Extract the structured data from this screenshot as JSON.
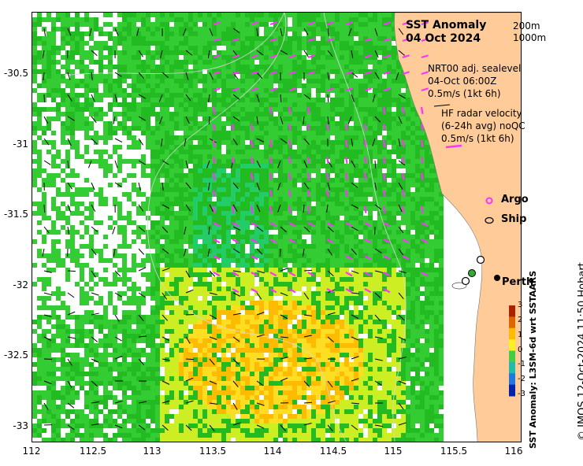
{
  "map": {
    "title_line1": "SST Anomaly",
    "title_line2": "04 Oct 2024",
    "depth_line1": "200m",
    "depth_line2": "1000m",
    "altimetry_line1": "NRT00 adj. sealevel",
    "altimetry_line2": "04-Oct 06:00Z",
    "altimetry_line3": "0.5m/s (1kt 6h)",
    "hf_line1": "HF radar velocity",
    "hf_line2": "(6-24h avg) noQC",
    "hf_line3": "0.5m/s (1kt 6h)",
    "legend_argo": "Argo",
    "legend_ship": "Ship",
    "city": "Perth",
    "colorbar_label": "SST Anomaly: L3SM-6d wrt SSTAARS",
    "colorbar_ticks": [
      "3",
      "2",
      "1",
      "0",
      "-1",
      "-2",
      "-3"
    ],
    "credit": "© IMOS 12-Oct-2024 11:50 Hobart",
    "lon_ticks": [
      "112",
      "112.5",
      "113",
      "113.5",
      "114",
      "114.5",
      "115",
      "115.5",
      "116"
    ],
    "lat_ticks": [
      "-30.5",
      "-31",
      "-31.5",
      "-32",
      "-32.5",
      "-33"
    ],
    "colors": {
      "land": "#ffcc99",
      "hf_vectors": "#ff33ff",
      "altimetry_vectors": "#000000",
      "bathy_contours": "#cccccc"
    }
  }
}
